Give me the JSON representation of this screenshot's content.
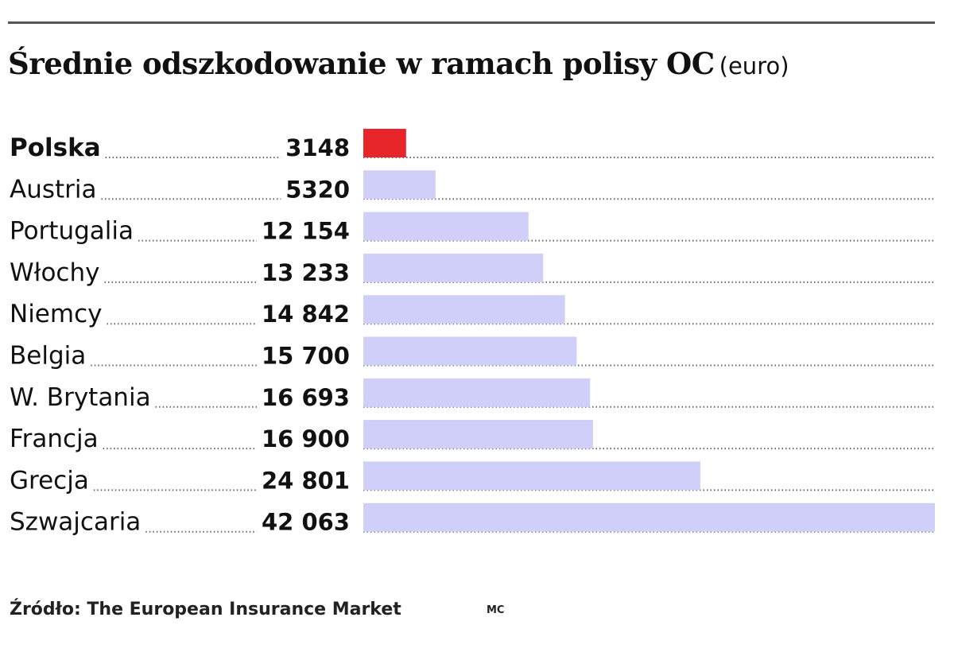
{
  "chart_data": {
    "type": "bar",
    "orientation": "horizontal",
    "title": "Średnie odszkodowanie w ramach polisy OC",
    "unit": "(euro)",
    "categories": [
      "Polska",
      "Austria",
      "Portugalia",
      "Włochy",
      "Niemcy",
      "Belgia",
      "W. Brytania",
      "Francja",
      "Grecja",
      "Szwajcaria"
    ],
    "values": [
      3148,
      5320,
      12154,
      13233,
      14842,
      15700,
      16693,
      16900,
      24801,
      42063
    ],
    "value_labels": [
      "3148",
      "5320",
      "12 154",
      "13 233",
      "14 842",
      "15 700",
      "16 693",
      "16 900",
      "24 801",
      "42 063"
    ],
    "highlight": "Polska",
    "xlim": [
      0,
      42063
    ],
    "grid": false,
    "colors": {
      "highlight": "#e8262a",
      "default": "#cfcffa",
      "dots": "#666666",
      "rule": "#555555"
    }
  },
  "footer": {
    "source": "Źródło: The European Insurance Market",
    "credit": "MC"
  }
}
